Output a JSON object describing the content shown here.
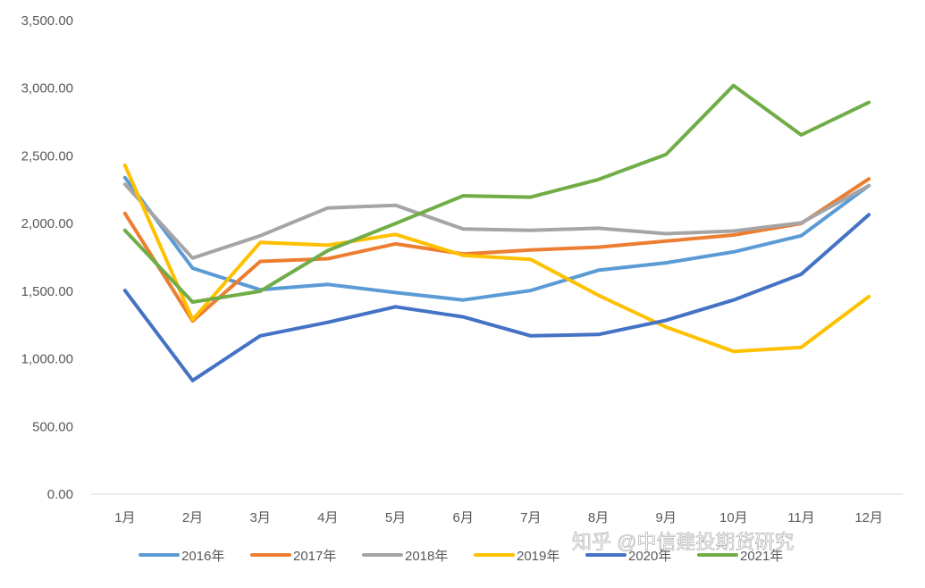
{
  "chart_data": {
    "type": "line",
    "categories": [
      "1月",
      "2月",
      "3月",
      "4月",
      "5月",
      "6月",
      "7月",
      "8月",
      "9月",
      "10月",
      "11月",
      "12月"
    ],
    "ylim": [
      0,
      3500
    ],
    "yticks": [
      "0.00",
      "500.00",
      "1,000.00",
      "1,500.00",
      "2,000.00",
      "2,500.00",
      "3,000.00",
      "3,500.00"
    ],
    "ytick_values": [
      0,
      500,
      1000,
      1500,
      2000,
      2500,
      3000,
      3500
    ],
    "grid": false,
    "legend_position": "bottom",
    "series": [
      {
        "name": "2016年",
        "color": "#5B9BD5",
        "values": [
          2340,
          1670,
          1510,
          1550,
          1490,
          1435,
          1505,
          1655,
          1710,
          1790,
          1910,
          2280
        ]
      },
      {
        "name": "2017年",
        "color": "#ED7D31",
        "values": [
          2075,
          1280,
          1720,
          1740,
          1850,
          1775,
          1805,
          1825,
          1870,
          1915,
          2000,
          2330
        ]
      },
      {
        "name": "2018年",
        "color": "#A5A5A5",
        "values": [
          2290,
          1745,
          1910,
          2115,
          2135,
          1960,
          1950,
          1965,
          1925,
          1945,
          2005,
          2280
        ]
      },
      {
        "name": "2019年",
        "color": "#FFC000",
        "values": [
          2430,
          1290,
          1860,
          1840,
          1920,
          1765,
          1735,
          1470,
          1235,
          1055,
          1085,
          1460
        ]
      },
      {
        "name": "2020年",
        "color": "#4472C4",
        "values": [
          1505,
          840,
          1170,
          1270,
          1385,
          1310,
          1170,
          1180,
          1285,
          1435,
          1625,
          2065
        ]
      },
      {
        "name": "2021年",
        "color": "#70AD47",
        "values": [
          1950,
          1420,
          1500,
          1800,
          2000,
          2205,
          2195,
          2325,
          2510,
          3020,
          2655,
          2895
        ]
      }
    ]
  },
  "watermark": {
    "text": "知乎 @中信建投期货研究"
  }
}
